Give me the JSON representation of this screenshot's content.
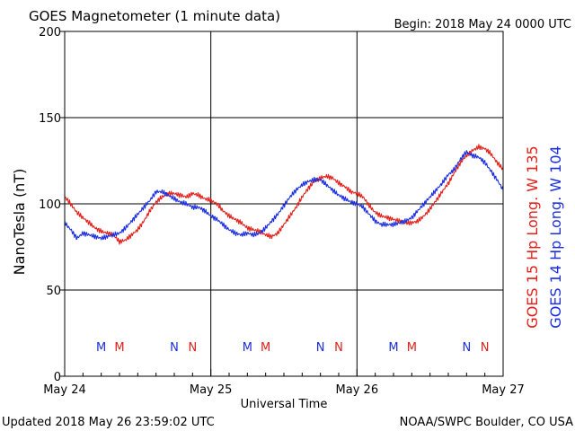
{
  "header": {
    "title": "GOES Magnetometer (1 minute data)",
    "begin": "Begin:  2018 May 24 0000 UTC"
  },
  "footer": {
    "updated": "Updated 2018 May 26 23:59:02 UTC",
    "credit": "NOAA/SWPC Boulder, CO USA"
  },
  "colors": {
    "goes15": "#e0201a",
    "goes14": "#1a2ee0",
    "axis": "#000000"
  },
  "chart_data": {
    "type": "line",
    "title": "GOES Magnetometer (1 minute data)",
    "xlabel": "Universal Time",
    "ylabel": "NanoTesla (nT)",
    "xlim": [
      0,
      72
    ],
    "ylim": [
      0,
      200
    ],
    "y_ticks": [
      0,
      50,
      100,
      150,
      200
    ],
    "x_ticks": [
      {
        "hour": 0,
        "label": "May 24"
      },
      {
        "hour": 24,
        "label": "May 25"
      },
      {
        "hour": 48,
        "label": "May 26"
      },
      {
        "hour": 72,
        "label": "May 27"
      }
    ],
    "grid": true,
    "legend_position": "right (vertical text)",
    "series": [
      {
        "name": "GOES 15 Hp  Long. W 135",
        "color": "#e0201a",
        "points": [
          [
            0,
            104
          ],
          [
            1,
            100
          ],
          [
            2,
            95
          ],
          [
            3,
            92
          ],
          [
            4,
            89
          ],
          [
            5,
            86
          ],
          [
            6,
            84
          ],
          [
            7,
            83
          ],
          [
            8,
            82
          ],
          [
            9,
            78
          ],
          [
            10,
            79
          ],
          [
            11,
            82
          ],
          [
            12,
            85
          ],
          [
            13,
            90
          ],
          [
            14,
            96
          ],
          [
            15,
            101
          ],
          [
            16,
            104
          ],
          [
            17,
            106
          ],
          [
            18,
            106
          ],
          [
            19,
            105
          ],
          [
            20,
            104
          ],
          [
            21,
            106
          ],
          [
            22,
            105
          ],
          [
            23,
            103
          ],
          [
            24,
            102
          ],
          [
            25,
            100
          ],
          [
            26,
            96
          ],
          [
            27,
            93
          ],
          [
            28,
            91
          ],
          [
            29,
            89
          ],
          [
            30,
            86
          ],
          [
            31,
            85
          ],
          [
            32,
            84
          ],
          [
            33,
            82
          ],
          [
            34,
            81
          ],
          [
            35,
            83
          ],
          [
            36,
            88
          ],
          [
            37,
            93
          ],
          [
            38,
            98
          ],
          [
            39,
            104
          ],
          [
            40,
            109
          ],
          [
            41,
            113
          ],
          [
            42,
            115
          ],
          [
            43,
            116
          ],
          [
            44,
            115
          ],
          [
            45,
            112
          ],
          [
            46,
            110
          ],
          [
            47,
            107
          ],
          [
            48,
            106
          ],
          [
            49,
            104
          ],
          [
            50,
            99
          ],
          [
            51,
            95
          ],
          [
            52,
            93
          ],
          [
            53,
            92
          ],
          [
            54,
            91
          ],
          [
            55,
            90
          ],
          [
            56,
            89
          ],
          [
            57,
            89
          ],
          [
            58,
            90
          ],
          [
            59,
            93
          ],
          [
            60,
            97
          ],
          [
            61,
            102
          ],
          [
            62,
            107
          ],
          [
            63,
            112
          ],
          [
            64,
            118
          ],
          [
            65,
            124
          ],
          [
            66,
            128
          ],
          [
            67,
            131
          ],
          [
            68,
            133
          ],
          [
            69,
            132
          ],
          [
            70,
            129
          ],
          [
            71,
            124
          ],
          [
            72,
            120
          ]
        ]
      },
      {
        "name": "GOES 14 Hp  Long. W 104",
        "color": "#1a2ee0",
        "points": [
          [
            0,
            89
          ],
          [
            1,
            85
          ],
          [
            2,
            80
          ],
          [
            3,
            83
          ],
          [
            4,
            82
          ],
          [
            5,
            81
          ],
          [
            6,
            80
          ],
          [
            7,
            81
          ],
          [
            8,
            82
          ],
          [
            9,
            83
          ],
          [
            10,
            86
          ],
          [
            11,
            90
          ],
          [
            12,
            94
          ],
          [
            13,
            98
          ],
          [
            14,
            102
          ],
          [
            15,
            107
          ],
          [
            16,
            107
          ],
          [
            17,
            105
          ],
          [
            18,
            103
          ],
          [
            19,
            101
          ],
          [
            20,
            100
          ],
          [
            21,
            98
          ],
          [
            22,
            98
          ],
          [
            23,
            96
          ],
          [
            24,
            93
          ],
          [
            25,
            91
          ],
          [
            26,
            88
          ],
          [
            27,
            85
          ],
          [
            28,
            83
          ],
          [
            29,
            82
          ],
          [
            30,
            83
          ],
          [
            31,
            82
          ],
          [
            32,
            83
          ],
          [
            33,
            86
          ],
          [
            34,
            90
          ],
          [
            35,
            94
          ],
          [
            36,
            99
          ],
          [
            37,
            104
          ],
          [
            38,
            108
          ],
          [
            39,
            111
          ],
          [
            40,
            113
          ],
          [
            41,
            114
          ],
          [
            42,
            114
          ],
          [
            43,
            111
          ],
          [
            44,
            108
          ],
          [
            45,
            105
          ],
          [
            46,
            103
          ],
          [
            47,
            101
          ],
          [
            48,
            100
          ],
          [
            49,
            98
          ],
          [
            50,
            94
          ],
          [
            51,
            90
          ],
          [
            52,
            88
          ],
          [
            53,
            88
          ],
          [
            54,
            88
          ],
          [
            55,
            89
          ],
          [
            56,
            90
          ],
          [
            57,
            92
          ],
          [
            58,
            96
          ],
          [
            59,
            100
          ],
          [
            60,
            104
          ],
          [
            61,
            108
          ],
          [
            62,
            112
          ],
          [
            63,
            117
          ],
          [
            64,
            120
          ],
          [
            65,
            126
          ],
          [
            66,
            130
          ],
          [
            67,
            128
          ],
          [
            68,
            127
          ],
          [
            69,
            124
          ],
          [
            70,
            119
          ],
          [
            71,
            114
          ],
          [
            72,
            108
          ]
        ]
      }
    ],
    "annotations": [
      {
        "text": "M",
        "hour": 6.0,
        "series": "GOES 14 Hp  Long. W 104",
        "color": "#1a2ee0"
      },
      {
        "text": "M",
        "hour": 9.0,
        "series": "GOES 15 Hp  Long. W 135",
        "color": "#e0201a"
      },
      {
        "text": "N",
        "hour": 18.0,
        "series": "GOES 14 Hp  Long. W 104",
        "color": "#1a2ee0"
      },
      {
        "text": "N",
        "hour": 21.0,
        "series": "GOES 15 Hp  Long. W 135",
        "color": "#e0201a"
      },
      {
        "text": "M",
        "hour": 30.0,
        "series": "GOES 14 Hp  Long. W 104",
        "color": "#1a2ee0"
      },
      {
        "text": "M",
        "hour": 33.0,
        "series": "GOES 15 Hp  Long. W 135",
        "color": "#e0201a"
      },
      {
        "text": "N",
        "hour": 42.0,
        "series": "GOES 14 Hp  Long. W 104",
        "color": "#1a2ee0"
      },
      {
        "text": "N",
        "hour": 45.0,
        "series": "GOES 15 Hp  Long. W 135",
        "color": "#e0201a"
      },
      {
        "text": "M",
        "hour": 54.0,
        "series": "GOES 14 Hp  Long. W 104",
        "color": "#1a2ee0"
      },
      {
        "text": "M",
        "hour": 57.0,
        "series": "GOES 15 Hp  Long. W 135",
        "color": "#e0201a"
      },
      {
        "text": "N",
        "hour": 66.0,
        "series": "GOES 14 Hp  Long. W 104",
        "color": "#1a2ee0"
      },
      {
        "text": "N",
        "hour": 69.0,
        "series": "GOES 15 Hp  Long. W 135",
        "color": "#e0201a"
      }
    ]
  }
}
